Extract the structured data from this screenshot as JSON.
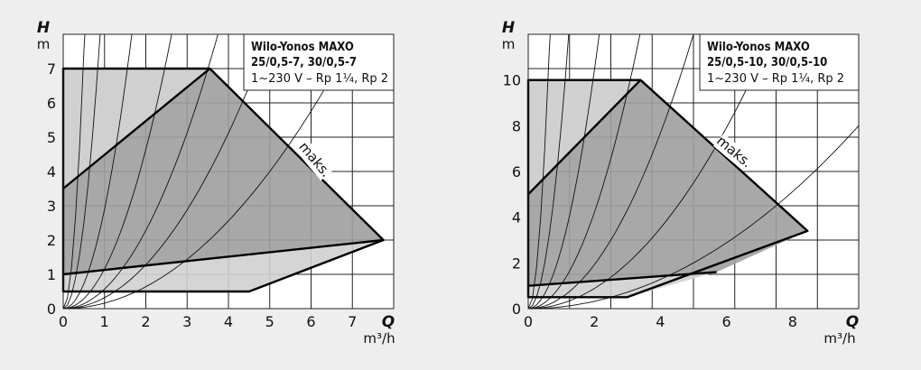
{
  "chart_data": [
    {
      "type": "line",
      "title": "Wilo-Yonos MAXO",
      "subtitle": "25/0,5-7, 30/0,5-7",
      "subtitle2": "1~230 V – Rp 1¼, Rp 2",
      "xlabel": "Q",
      "xunit": "m³/h",
      "ylabel": "H",
      "yunit": "m",
      "xlim": [
        0,
        8
      ],
      "ylim": [
        0,
        8
      ],
      "xticks": [
        0,
        1,
        2,
        3,
        4,
        5,
        6,
        7
      ],
      "yticks": [
        0,
        1,
        2,
        3,
        4,
        5,
        6,
        7
      ],
      "grid": true,
      "max_label": "maks.",
      "regions": {
        "upper": [
          [
            0,
            7
          ],
          [
            3.55,
            7
          ],
          [
            7.75,
            2
          ],
          [
            0,
            1
          ]
        ],
        "middle": [
          [
            0,
            1
          ],
          [
            7.75,
            2
          ],
          [
            4.5,
            0.5
          ],
          [
            0,
            0.5
          ]
        ],
        "lower": [
          [
            0,
            0.5
          ],
          [
            4.5,
            0.5
          ],
          [
            0,
            0.5
          ]
        ]
      },
      "envelope": [
        [
          0,
          7
        ],
        [
          3.55,
          7
        ],
        [
          7.75,
          2
        ],
        [
          4.5,
          0.5
        ],
        [
          0,
          0.5
        ]
      ],
      "lines": [
        [
          [
            0,
            3.5
          ],
          [
            3.55,
            7
          ]
        ],
        [
          [
            0,
            1
          ],
          [
            7.75,
            2
          ]
        ]
      ],
      "system_curves": [
        30,
        10,
        2.9,
        1.16,
        0.57,
        0.32,
        0.16
      ]
    },
    {
      "type": "line",
      "title": "Wilo-Yonos MAXO",
      "subtitle": "25/0,5-10, 30/0,5-10",
      "subtitle2": "1~230 V – Rp 1¼, Rp 2",
      "xlabel": "Q",
      "xunit": "m³/h",
      "ylabel": "H",
      "yunit": "m",
      "xlim": [
        0,
        10
      ],
      "ylim": [
        0,
        12
      ],
      "xticks": [
        0,
        2,
        4,
        6,
        8
      ],
      "yticks": [
        0,
        2,
        4,
        6,
        8,
        10
      ],
      "grid": true,
      "max_label": "maks.",
      "regions": {
        "upper": [
          [
            0,
            10
          ],
          [
            3.4,
            10
          ],
          [
            8.45,
            3.4
          ],
          [
            5.7,
            1.6
          ],
          [
            0,
            1
          ]
        ],
        "middle": [
          [
            0,
            1
          ],
          [
            5.7,
            1.6
          ],
          [
            3,
            0.5
          ],
          [
            0,
            0.5
          ]
        ]
      },
      "envelope": [
        [
          0,
          10
        ],
        [
          3.4,
          10
        ],
        [
          8.45,
          3.4
        ],
        [
          3,
          0.5
        ],
        [
          0,
          0.5
        ]
      ],
      "lines": [
        [
          [
            0,
            5
          ],
          [
            3.4,
            10
          ]
        ],
        [
          [
            0,
            1
          ],
          [
            5.7,
            1.6
          ]
        ]
      ],
      "system_curves": [
        28,
        8,
        2.6,
        1.05,
        0.48,
        0.22,
        0.08
      ]
    }
  ]
}
